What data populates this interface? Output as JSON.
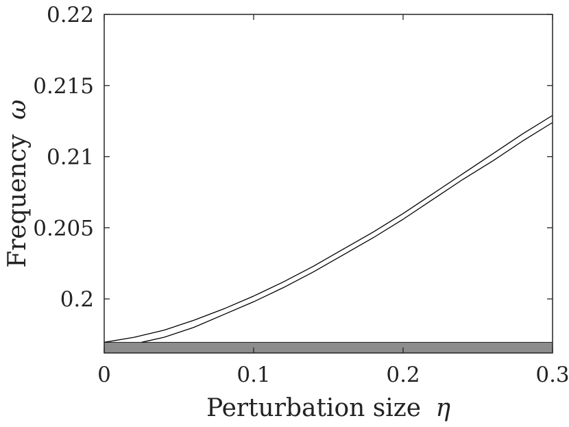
{
  "chart_data": {
    "type": "line",
    "xlabel": "Perturbation size",
    "xlabel_symbol": "η",
    "ylabel": "Frequency",
    "ylabel_symbol": "ω",
    "xlim": [
      0,
      0.3
    ],
    "ylim": [
      0.1962,
      0.22
    ],
    "xticks": [
      0,
      0.1,
      0.2,
      0.3
    ],
    "xtick_labels": [
      "0",
      "0.1",
      "0.2",
      "0.3"
    ],
    "yticks": [
      0.2,
      0.205,
      0.21,
      0.215,
      0.22
    ],
    "ytick_labels": [
      "0.2",
      "0.205",
      "0.21",
      "0.215",
      "0.22"
    ],
    "grid": false,
    "band": {
      "y_from": 0.1962,
      "y_to": 0.19695,
      "color": "#8c8c8c"
    },
    "series": [
      {
        "color": "#000000",
        "x": [
          0,
          0.02,
          0.04,
          0.06,
          0.08,
          0.1,
          0.12,
          0.14,
          0.16,
          0.18,
          0.2,
          0.22,
          0.24,
          0.26,
          0.28,
          0.3
        ],
        "y": [
          0.19695,
          0.1973,
          0.1978,
          0.1985,
          0.1993,
          0.2002,
          0.2012,
          0.2023,
          0.2035,
          0.2047,
          0.206,
          0.2074,
          0.2088,
          0.2102,
          0.2116,
          0.2129
        ]
      },
      {
        "color": "#000000",
        "x": [
          0.025,
          0.04,
          0.06,
          0.08,
          0.1,
          0.12,
          0.14,
          0.16,
          0.18,
          0.2,
          0.22,
          0.24,
          0.26,
          0.28,
          0.3
        ],
        "y": [
          0.19695,
          0.1973,
          0.198,
          0.1989,
          0.1998,
          0.2008,
          0.2019,
          0.2031,
          0.2043,
          0.2056,
          0.207,
          0.2084,
          0.2097,
          0.2111,
          0.2124
        ]
      }
    ]
  },
  "colors": {
    "axis": "#222222",
    "band": "#8c8c8c",
    "line": "#000000"
  }
}
